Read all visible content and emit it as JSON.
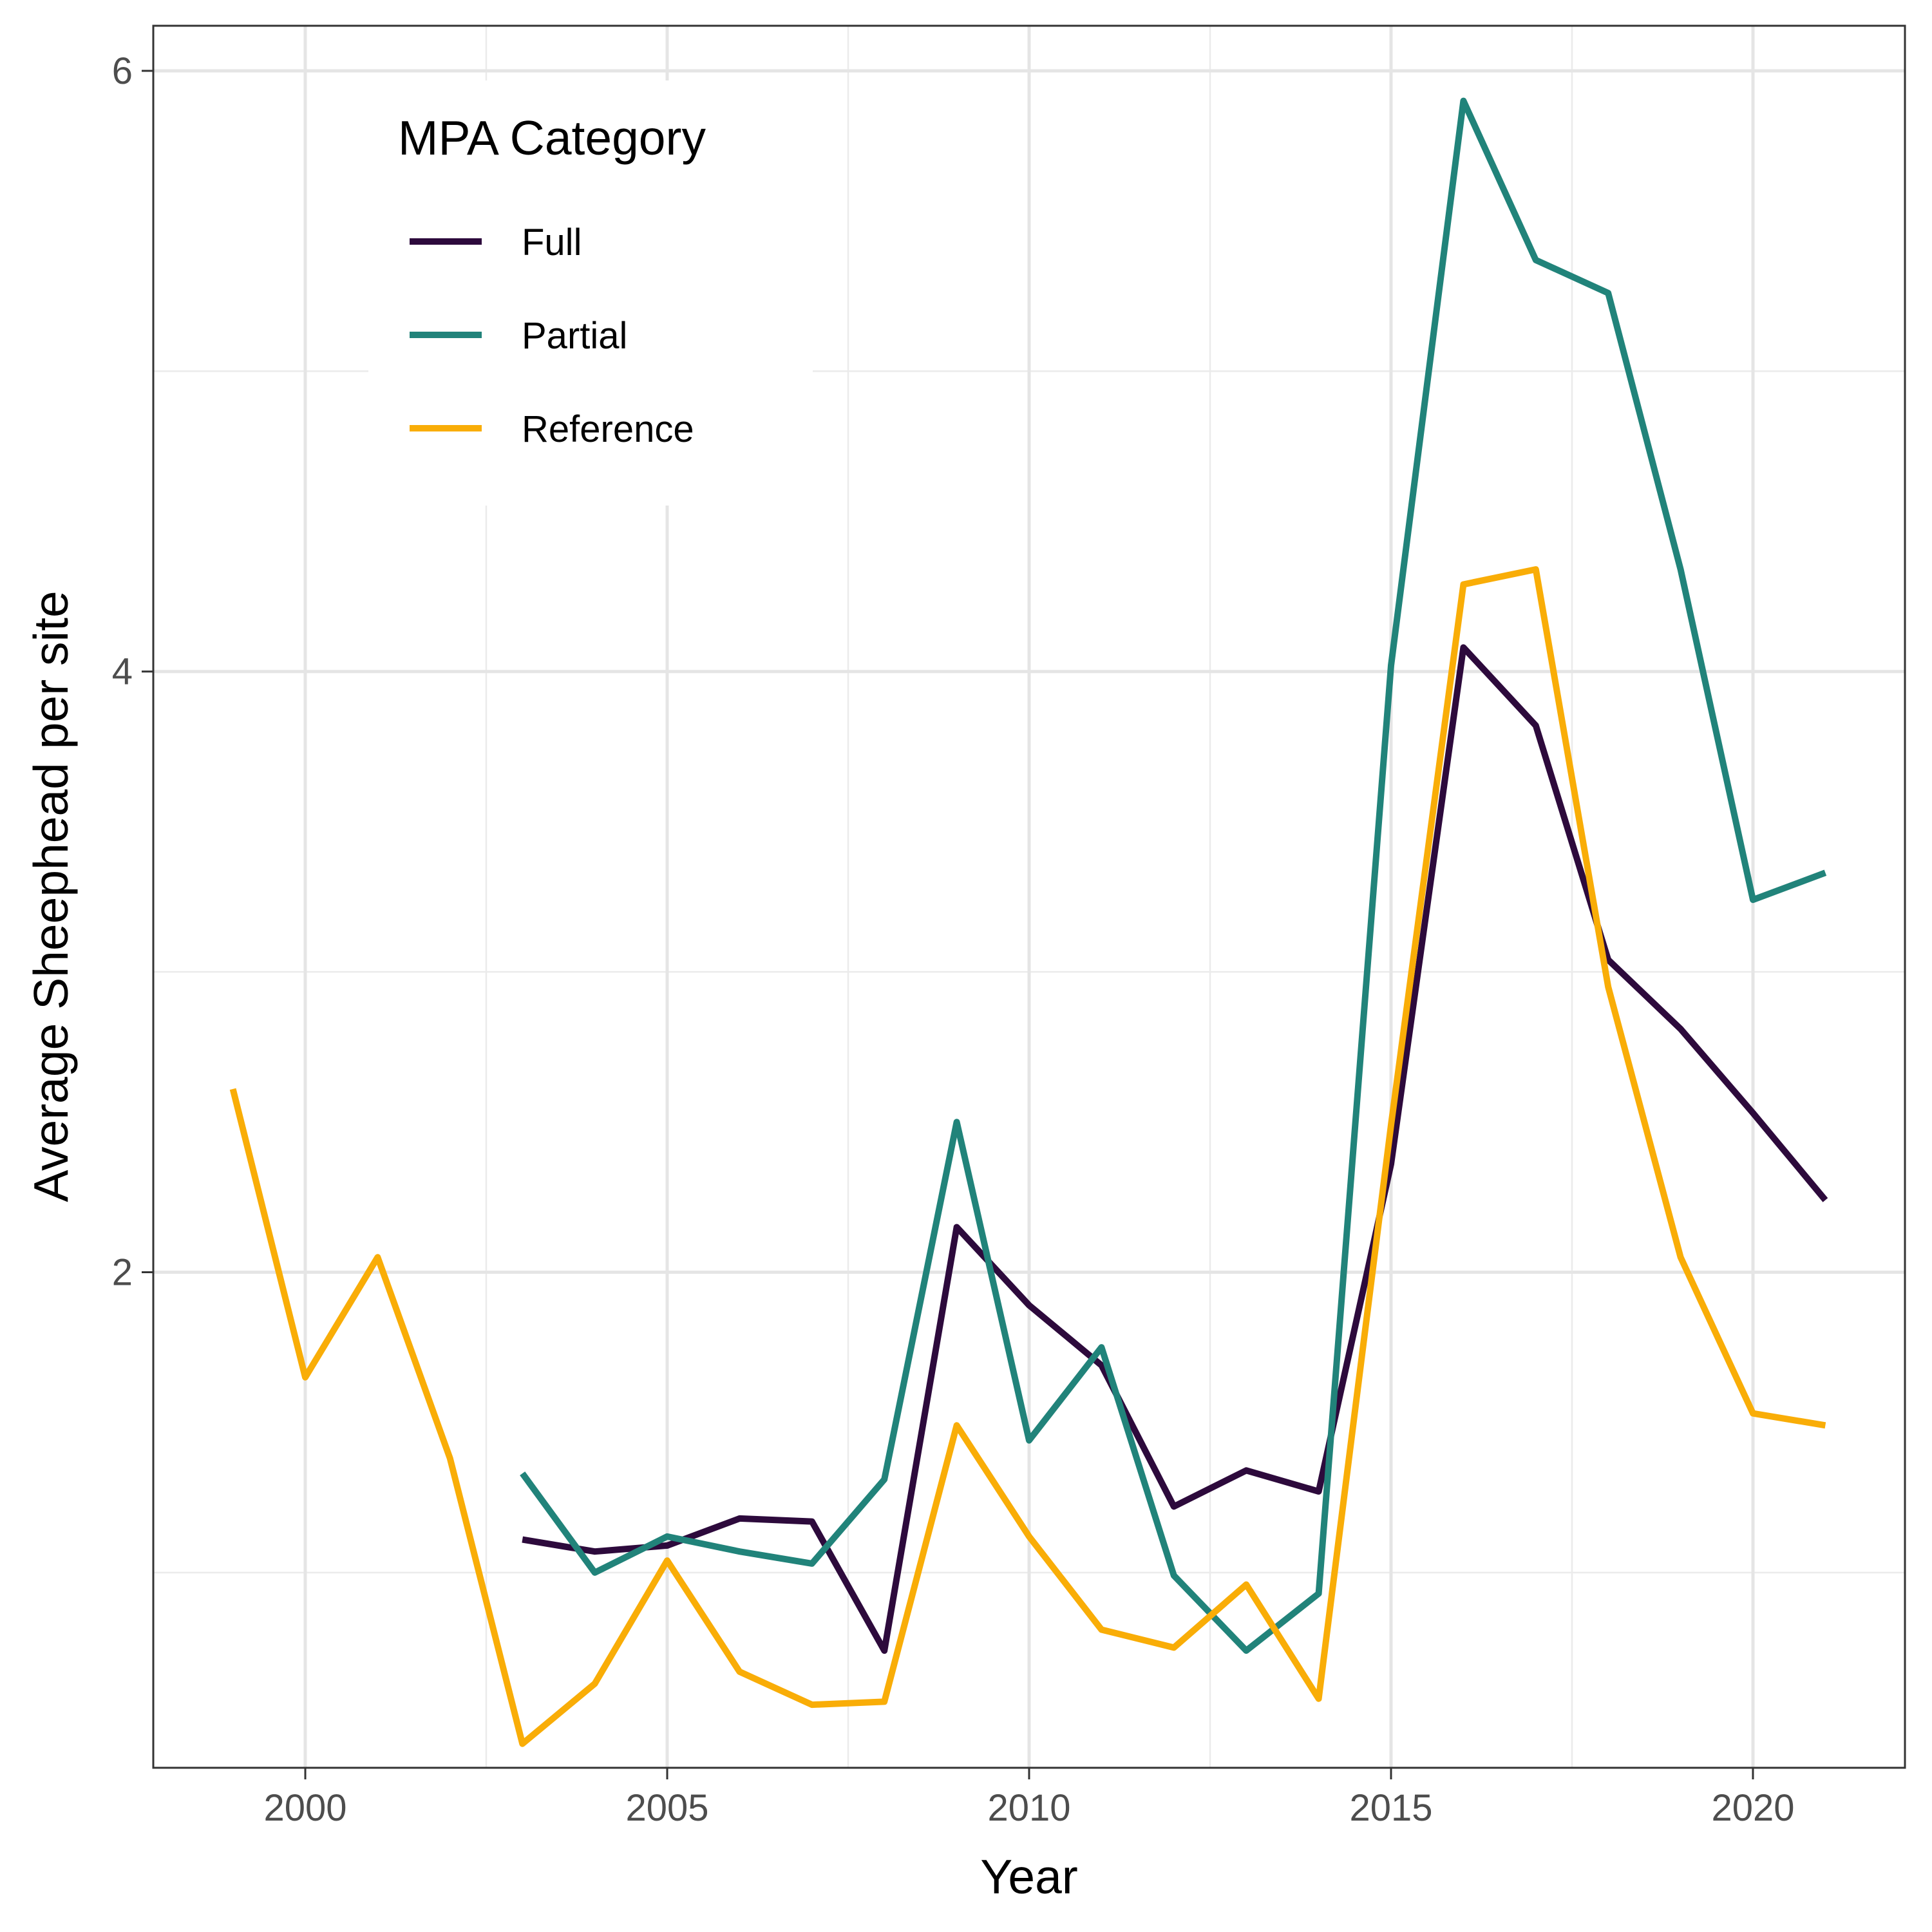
{
  "chart_data": {
    "type": "line",
    "xlabel": "Year",
    "ylabel": "Average Sheephead per site",
    "xlim": [
      1997.9,
      2022.1
    ],
    "ylim": [
      0.35,
      6.15
    ],
    "x_ticks": [
      2000,
      2005,
      2010,
      2015,
      2020
    ],
    "y_ticks": [
      2,
      4,
      6
    ],
    "x_tick_labels": [
      "2000",
      "2005",
      "2010",
      "2015",
      "2020"
    ],
    "y_tick_labels": [
      "2",
      "4",
      "6"
    ],
    "grid": true,
    "legend": {
      "title": "MPA Category",
      "position": "top-left inside"
    },
    "series": [
      {
        "name": "Full",
        "color": "#2d0a3c",
        "x": [
          2003,
          2004,
          2005,
          2006,
          2007,
          2008,
          2009,
          2010,
          2011,
          2012,
          2013,
          2014,
          2015,
          2016,
          2017,
          2018,
          2019,
          2020,
          2021
        ],
        "y": [
          1.11,
          1.07,
          1.09,
          1.18,
          1.17,
          0.74,
          2.15,
          1.89,
          1.69,
          1.22,
          1.34,
          1.27,
          2.36,
          4.08,
          3.82,
          3.04,
          2.81,
          2.53,
          2.24
        ]
      },
      {
        "name": "Partial",
        "color": "#21837a",
        "x": [
          2003,
          2004,
          2005,
          2006,
          2007,
          2008,
          2009,
          2010,
          2011,
          2012,
          2013,
          2014,
          2015,
          2016,
          2017,
          2018,
          2019,
          2020,
          2021
        ],
        "y": [
          1.33,
          1.0,
          1.12,
          1.07,
          1.03,
          1.31,
          2.5,
          1.44,
          1.75,
          0.99,
          0.74,
          0.93,
          4.02,
          5.9,
          5.37,
          5.26,
          4.34,
          3.24,
          3.33
        ]
      },
      {
        "name": "Reference",
        "color": "#f9ad07",
        "x": [
          1999,
          2000,
          2001,
          2002,
          2003,
          2004,
          2005,
          2006,
          2007,
          2008,
          2009,
          2010,
          2011,
          2012,
          2013,
          2014,
          2015,
          2016,
          2017,
          2018,
          2019,
          2020,
          2021
        ],
        "y": [
          2.61,
          1.65,
          2.05,
          1.38,
          0.43,
          0.63,
          1.04,
          0.67,
          0.56,
          0.57,
          1.49,
          1.12,
          0.81,
          0.75,
          0.96,
          0.58,
          2.49,
          4.29,
          4.34,
          2.95,
          2.05,
          1.53,
          1.49
        ]
      }
    ]
  }
}
